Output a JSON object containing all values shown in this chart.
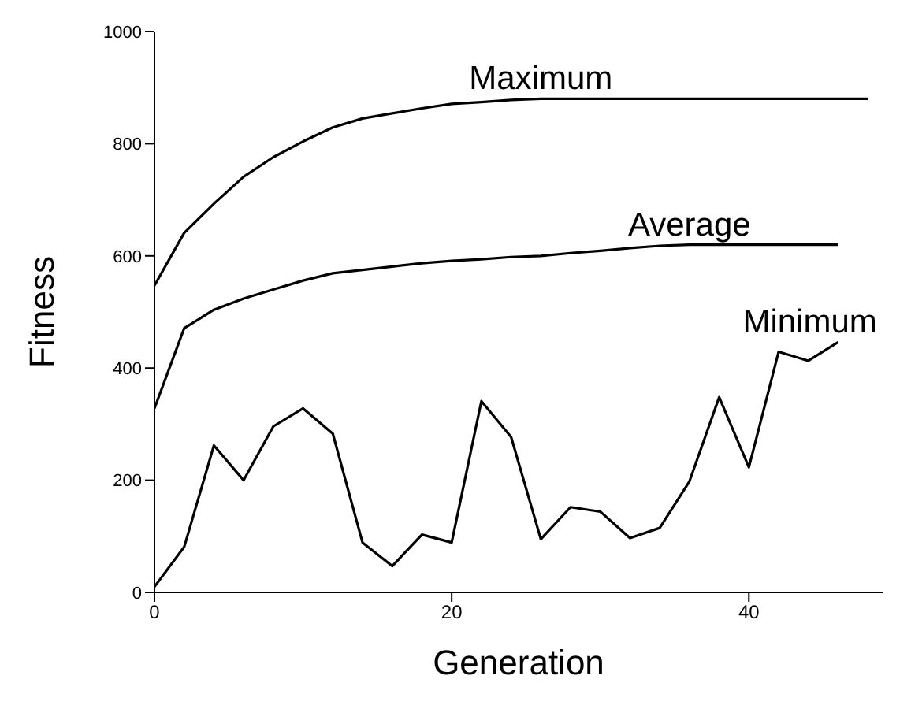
{
  "chart_data": {
    "type": "line",
    "xlabel": "Generation",
    "ylabel": "Fitness",
    "xlim": [
      0,
      49
    ],
    "xticks": [
      0,
      20,
      40
    ],
    "ylim": [
      0,
      1000
    ],
    "yticks": [
      0,
      200,
      400,
      600,
      800,
      1000
    ],
    "grid": false,
    "legend": false,
    "marker": "none",
    "line_style": "solid",
    "series": [
      {
        "name": "Maximum",
        "color": "#000000",
        "x": [
          0,
          2,
          4,
          6,
          8,
          10,
          12,
          14,
          16,
          18,
          20,
          22,
          24,
          26,
          48
        ],
        "values": [
          547,
          641,
          693,
          741,
          776,
          804,
          829,
          845,
          854,
          863,
          871,
          874,
          878,
          880,
          880
        ]
      },
      {
        "name": "Average",
        "color": "#000000",
        "x": [
          0,
          2,
          4,
          6,
          8,
          10,
          12,
          14,
          16,
          18,
          20,
          22,
          24,
          26,
          28,
          30,
          32,
          34,
          36,
          46
        ],
        "values": [
          328,
          471,
          504,
          524,
          540,
          556,
          569,
          575,
          581,
          587,
          591,
          594,
          598,
          600,
          605,
          609,
          614,
          618,
          620,
          620
        ]
      },
      {
        "name": "Minimum",
        "color": "#000000",
        "x": [
          0,
          2,
          4,
          6,
          8,
          10,
          12,
          14,
          16,
          18,
          20,
          22,
          24,
          26,
          28,
          30,
          32,
          34,
          36,
          38,
          40,
          42,
          44,
          46
        ],
        "values": [
          10,
          81,
          262,
          200,
          296,
          328,
          283,
          89,
          47,
          103,
          89,
          341,
          277,
          95,
          152,
          144,
          97,
          115,
          198,
          348,
          223,
          429,
          413,
          446
        ]
      }
    ]
  }
}
